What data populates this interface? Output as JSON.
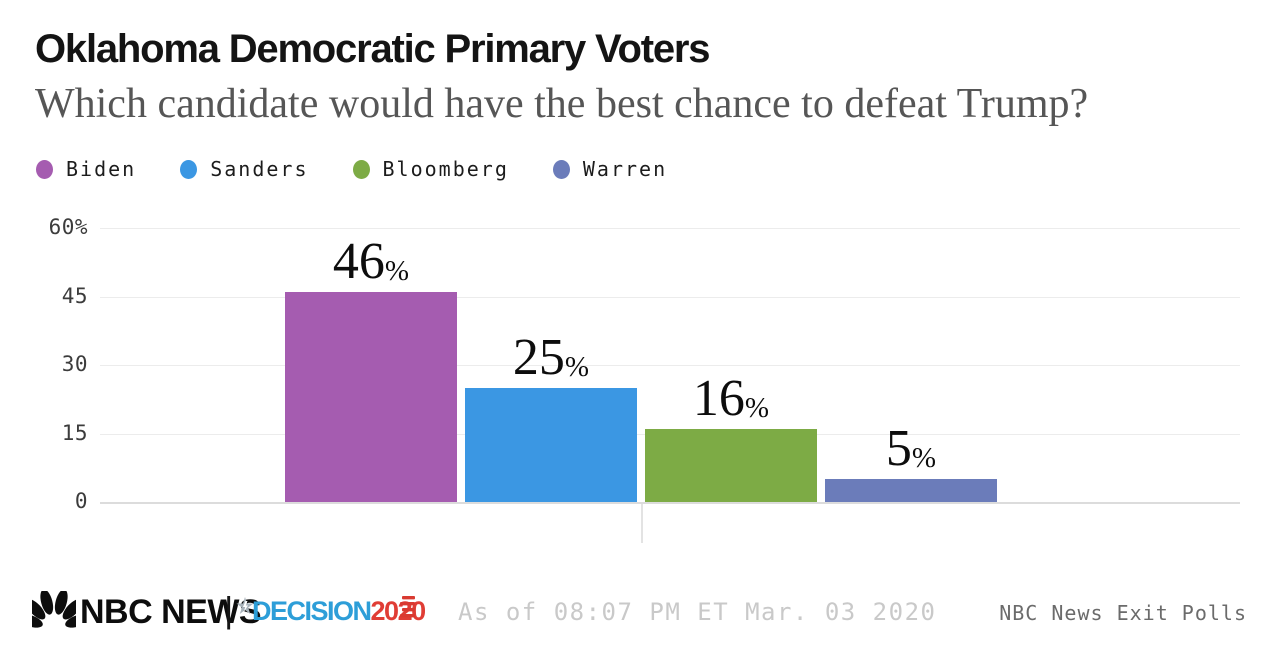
{
  "header": {
    "title": "Oklahoma Democratic Primary Voters",
    "subtitle": "Which candidate would have the best chance to defeat Trump?"
  },
  "legend": [
    {
      "label": "Biden",
      "color": "#a55cb0"
    },
    {
      "label": "Sanders",
      "color": "#3b97e3"
    },
    {
      "label": "Bloomberg",
      "color": "#7dab45"
    },
    {
      "label": "Warren",
      "color": "#6b7cba"
    }
  ],
  "chart_data": {
    "type": "bar",
    "title": "Oklahoma Democratic Primary Voters",
    "subtitle": "Which candidate would have the best chance to defeat Trump?",
    "categories": [
      "Biden",
      "Sanders",
      "Bloomberg",
      "Warren"
    ],
    "values": [
      46,
      25,
      16,
      5
    ],
    "value_labels": [
      "46",
      "25",
      "16",
      "5"
    ],
    "percent_sign": "%",
    "series_colors": [
      "#a55cb0",
      "#3b97e3",
      "#7dab45",
      "#6b7cba"
    ],
    "ylim": [
      0,
      60
    ],
    "yticks": [
      60,
      45,
      30,
      15,
      0
    ],
    "ytick_labels": [
      "60%",
      "45",
      "30",
      "15",
      "0"
    ],
    "xlabel": "",
    "ylabel": "",
    "grid": true,
    "legend_position": "top-left"
  },
  "footer": {
    "brand": "NBC NEWS",
    "separator": "|",
    "decision_word": "DECISION",
    "decision_year": "2020",
    "as_of": "As of 08:07 PM ET Mar. 03 2020",
    "source": "NBC News Exit Polls"
  }
}
